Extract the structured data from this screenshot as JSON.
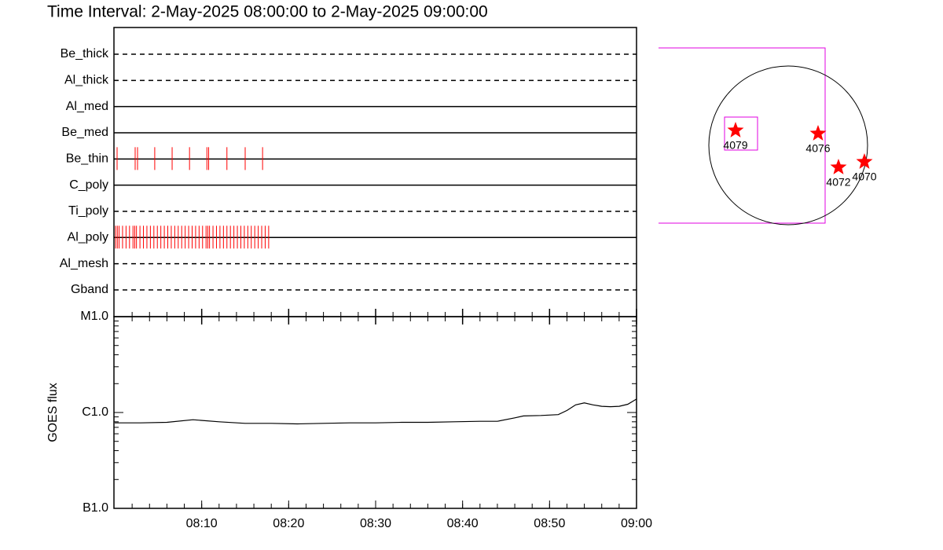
{
  "title": "Time Interval:  2-May-2025 08:00:00 to  2-May-2025 09:00:00",
  "chart_data": [
    {
      "type": "events",
      "categories": [
        "Be_thick",
        "Al_thick",
        "Al_med",
        "Be_med",
        "Be_thin",
        "C_poly",
        "Ti_poly",
        "Al_poly",
        "Al_mesh",
        "Gband"
      ],
      "line_styles": [
        "dashed",
        "dashed",
        "solid",
        "solid",
        "solid",
        "solid",
        "dashed",
        "solid",
        "dashed",
        "dashed"
      ],
      "events": [
        [],
        [],
        [],
        [],
        [
          0.27,
          2.35,
          2.62,
          4.6,
          6.6,
          8.6,
          10.6,
          10.8,
          12.9,
          15.0,
          17.0
        ],
        [],
        [],
        [
          0.1,
          0.3,
          0.5,
          0.9,
          1.3,
          1.7,
          2.1,
          2.3,
          2.5,
          2.9,
          3.3,
          3.7,
          4.1,
          4.5,
          4.9,
          5.3,
          5.7,
          6.1,
          6.5,
          6.9,
          7.3,
          7.7,
          8.1,
          8.5,
          8.9,
          9.3,
          9.7,
          10.1,
          10.5,
          10.7,
          10.9,
          11.3,
          11.7,
          12.1,
          12.5,
          12.9,
          13.3,
          13.7,
          14.1,
          14.5,
          14.9,
          15.3,
          15.7,
          16.1,
          16.5,
          16.9,
          17.3,
          17.7
        ],
        [],
        []
      ],
      "color": "#ff0000",
      "xlim": [
        0,
        60
      ]
    },
    {
      "type": "line",
      "ylabel": "GOES flux",
      "x": [
        0,
        3,
        6,
        9,
        12,
        15,
        18,
        21,
        24,
        27,
        30,
        33,
        36,
        39,
        42,
        44,
        46,
        47,
        49,
        51,
        52,
        53,
        54,
        55,
        56,
        57,
        58,
        59,
        60
      ],
      "values": [
        7.8e-07,
        7.8e-07,
        7.9e-07,
        8.4e-07,
        8e-07,
        7.7e-07,
        7.7e-07,
        7.6e-07,
        7.7e-07,
        7.8e-07,
        7.8e-07,
        7.9e-07,
        7.9e-07,
        8e-07,
        8.1e-07,
        8.1e-07,
        8.8e-07,
        9.2e-07,
        9.3e-07,
        9.5e-07,
        1.05e-06,
        1.2e-06,
        1.26e-06,
        1.2e-06,
        1.16e-06,
        1.15e-06,
        1.16e-06,
        1.22e-06,
        1.38e-06
      ],
      "color": "#000000",
      "log_y": true,
      "ylim": [
        1e-07,
        1e-05
      ],
      "yticks": [
        {
          "value": 1e-07,
          "label": "B1.0"
        },
        {
          "value": 1e-06,
          "label": "C1.0"
        },
        {
          "value": 1e-05,
          "label": "M1.0"
        }
      ],
      "xlim": [
        0,
        60
      ],
      "xticks": [
        {
          "value": 10,
          "label": "08:10"
        },
        {
          "value": 20,
          "label": "08:20"
        },
        {
          "value": 30,
          "label": "08:30"
        },
        {
          "value": 40,
          "label": "08:40"
        },
        {
          "value": 50,
          "label": "08:50"
        },
        {
          "value": 60,
          "label": "09:00"
        }
      ]
    }
  ],
  "map": {
    "regions": [
      "4079",
      "4076",
      "4072",
      "4070"
    ]
  }
}
